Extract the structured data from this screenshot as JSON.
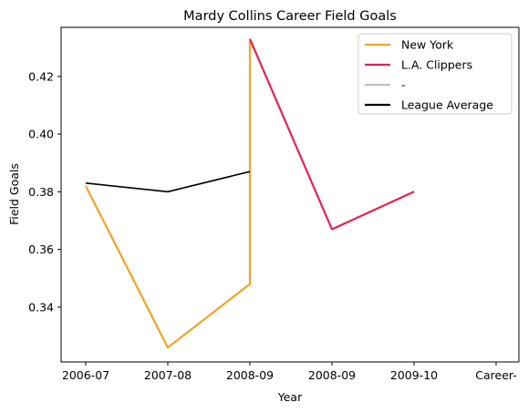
{
  "chart_data": {
    "type": "line",
    "title": "Mardy Collins Career Field Goals",
    "xlabel": "Year",
    "ylabel": "Field Goals",
    "categories": [
      "2006-07",
      "2007-08",
      "2008-09",
      "2008-09",
      "2009-10",
      "Career-"
    ],
    "yticks": [
      0.34,
      0.36,
      0.38,
      0.4,
      0.42
    ],
    "ylim": [
      0.321,
      0.437
    ],
    "legend_position": "top-right",
    "grid": false,
    "series": [
      {
        "name": "New York",
        "color": "#f4a224",
        "x": [
          0,
          1,
          2,
          2
        ],
        "y": [
          0.382,
          0.326,
          0.348,
          0.433
        ]
      },
      {
        "name": "L.A. Clippers",
        "color": "#e8204e",
        "x": [
          2,
          3,
          4
        ],
        "y": [
          0.433,
          0.367,
          0.38
        ]
      },
      {
        "name": "-",
        "color": "#c0c0c0",
        "x": [],
        "y": []
      },
      {
        "name": "League Average",
        "color": "#000000",
        "x": [
          0,
          1,
          2
        ],
        "y": [
          0.383,
          0.38,
          0.387
        ]
      }
    ]
  }
}
